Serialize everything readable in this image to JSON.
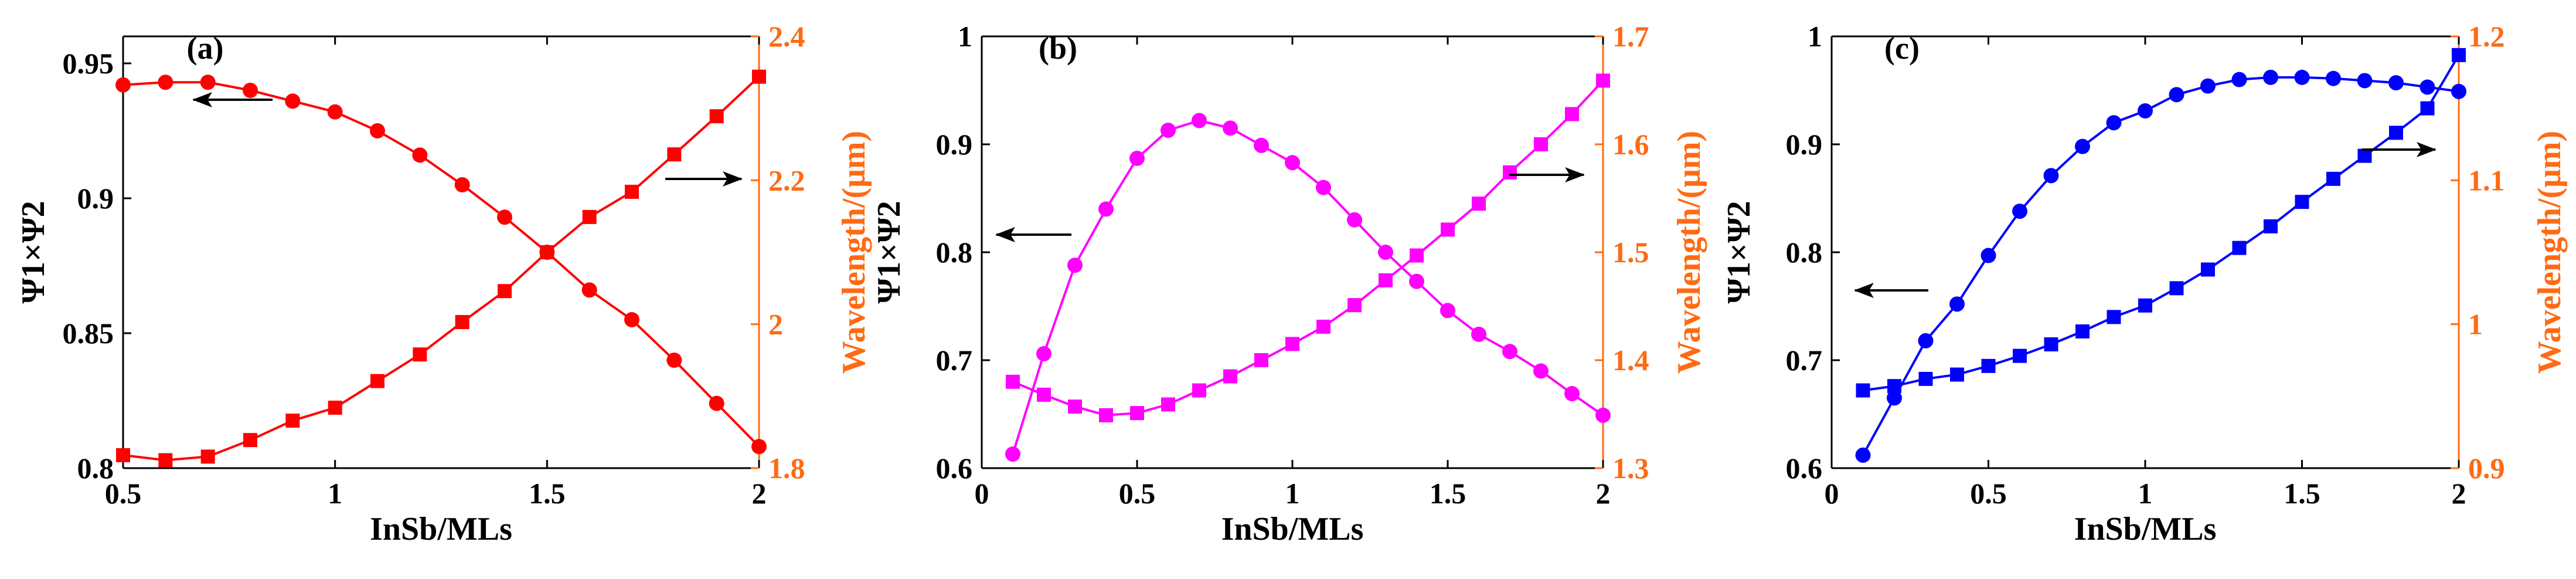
{
  "figure": {
    "colors": {
      "axis_left": "#000000",
      "axis_right": "#FF6A13",
      "arrow": "#000000",
      "background": "#ffffff"
    }
  },
  "chart_data": [
    {
      "type": "line",
      "panel_label": "(a)",
      "xlabel": "InSb/MLs",
      "ylabel_left": "Ψ1×Ψ2",
      "ylabel_right": "Wavelength/(μm)",
      "xlim": [
        0.5,
        2
      ],
      "ylim_left": [
        0.8,
        0.96
      ],
      "ylim_right": [
        1.8,
        2.4
      ],
      "x_ticks": [
        0.5,
        1,
        1.5,
        2
      ],
      "x_tick_labels": [
        "0.5",
        "1",
        "1.5",
        "2"
      ],
      "y_ticks_left": [
        0.8,
        0.85,
        0.9,
        0.95
      ],
      "y_tick_labels_left": [
        "0.8",
        "0.85",
        "0.9",
        "0.95"
      ],
      "y_ticks_right": [
        1.8,
        2,
        2.2,
        2.4
      ],
      "y_tick_labels_right": [
        "1.8",
        "2",
        "2.2",
        "2.4"
      ],
      "series": [
        {
          "name": "Ψ1×Ψ2",
          "axis": "left",
          "marker": "circle",
          "color": "#FF0000",
          "x": [
            0.5,
            0.6,
            0.7,
            0.8,
            0.9,
            1.0,
            1.1,
            1.2,
            1.3,
            1.4,
            1.5,
            1.6,
            1.7,
            1.8,
            1.9,
            2.0
          ],
          "values": [
            0.942,
            0.943,
            0.943,
            0.94,
            0.936,
            0.932,
            0.925,
            0.916,
            0.905,
            0.893,
            0.88,
            0.866,
            0.855,
            0.84,
            0.824,
            0.808
          ]
        },
        {
          "name": "Wavelength",
          "axis": "right",
          "marker": "square",
          "color": "#FF0000",
          "x": [
            0.5,
            0.6,
            0.7,
            0.8,
            0.9,
            1.0,
            1.1,
            1.2,
            1.3,
            1.4,
            1.5,
            1.6,
            1.7,
            1.8,
            1.9,
            2.0
          ],
          "values": [
            1.818,
            1.811,
            1.816,
            1.839,
            1.866,
            1.884,
            1.921,
            1.958,
            2.003,
            2.046,
            2.1,
            2.149,
            2.184,
            2.236,
            2.289,
            2.344
          ]
        }
      ],
      "arrows": [
        {
          "direction": "left",
          "points_to": "left axis"
        },
        {
          "direction": "right",
          "points_to": "right axis"
        }
      ]
    },
    {
      "type": "line",
      "panel_label": "(b)",
      "xlabel": "InSb/MLs",
      "ylabel_left": "Ψ1×Ψ2",
      "ylabel_right": "Wavelength/(μm)",
      "xlim": [
        0,
        2
      ],
      "ylim_left": [
        0.6,
        1.0
      ],
      "ylim_right": [
        1.3,
        1.7
      ],
      "x_ticks": [
        0,
        0.5,
        1,
        1.5,
        2
      ],
      "x_tick_labels": [
        "0",
        "0.5",
        "1",
        "1.5",
        "2"
      ],
      "y_ticks_left": [
        0.6,
        0.7,
        0.8,
        0.9,
        1.0
      ],
      "y_tick_labels_left": [
        "0.6",
        "0.7",
        "0.8",
        "0.9",
        "1"
      ],
      "y_ticks_right": [
        1.3,
        1.4,
        1.5,
        1.6,
        1.7
      ],
      "y_tick_labels_right": [
        "1.3",
        "1.4",
        "1.5",
        "1.6",
        "1.7"
      ],
      "series": [
        {
          "name": "Ψ1×Ψ2",
          "axis": "left",
          "marker": "circle",
          "color": "#FF00FF",
          "x": [
            0.1,
            0.2,
            0.3,
            0.4,
            0.5,
            0.6,
            0.7,
            0.8,
            0.9,
            1.0,
            1.1,
            1.2,
            1.3,
            1.4,
            1.5,
            1.6,
            1.7,
            1.8,
            1.9,
            2.0
          ],
          "values": [
            0.613,
            0.706,
            0.788,
            0.84,
            0.887,
            0.913,
            0.922,
            0.915,
            0.899,
            0.883,
            0.86,
            0.83,
            0.8,
            0.773,
            0.746,
            0.724,
            0.708,
            0.69,
            0.669,
            0.649
          ]
        },
        {
          "name": "Wavelength",
          "axis": "right",
          "marker": "square",
          "color": "#FF00FF",
          "x": [
            0.1,
            0.2,
            0.3,
            0.4,
            0.5,
            0.6,
            0.7,
            0.8,
            0.9,
            1.0,
            1.1,
            1.2,
            1.3,
            1.4,
            1.5,
            1.6,
            1.7,
            1.8,
            1.9,
            2.0
          ],
          "values": [
            1.38,
            1.368,
            1.357,
            1.349,
            1.351,
            1.359,
            1.372,
            1.385,
            1.4,
            1.415,
            1.431,
            1.451,
            1.474,
            1.497,
            1.521,
            1.545,
            1.574,
            1.6,
            1.628,
            1.659
          ]
        }
      ],
      "arrows": [
        {
          "direction": "left",
          "points_to": "left axis"
        },
        {
          "direction": "right",
          "points_to": "right axis"
        }
      ]
    },
    {
      "type": "line",
      "panel_label": "(c)",
      "xlabel": "InSb/MLs",
      "ylabel_left": "Ψ1×Ψ2",
      "ylabel_right": "Wavelength/(μm)",
      "xlim": [
        0,
        2
      ],
      "ylim_left": [
        0.6,
        1.0
      ],
      "ylim_right": [
        0.9,
        1.2
      ],
      "x_ticks": [
        0,
        0.5,
        1,
        1.5,
        2
      ],
      "x_tick_labels": [
        "0",
        "0.5",
        "1",
        "1.5",
        "2"
      ],
      "y_ticks_left": [
        0.6,
        0.7,
        0.8,
        0.9,
        1.0
      ],
      "y_tick_labels_left": [
        "0.6",
        "0.7",
        "0.8",
        "0.9",
        "1"
      ],
      "y_ticks_right": [
        0.9,
        1.0,
        1.1,
        1.2
      ],
      "y_tick_labels_right": [
        "0.9",
        "1",
        "1.1",
        "1.2"
      ],
      "series": [
        {
          "name": "Ψ1×Ψ2",
          "axis": "left",
          "marker": "circle",
          "color": "#0000FF",
          "x": [
            0.1,
            0.2,
            0.3,
            0.4,
            0.5,
            0.6,
            0.7,
            0.8,
            0.9,
            1.0,
            1.1,
            1.2,
            1.3,
            1.4,
            1.5,
            1.6,
            1.7,
            1.8,
            1.9,
            2.0
          ],
          "values": [
            0.612,
            0.665,
            0.718,
            0.752,
            0.797,
            0.838,
            0.871,
            0.898,
            0.92,
            0.931,
            0.946,
            0.954,
            0.96,
            0.962,
            0.962,
            0.961,
            0.959,
            0.957,
            0.953,
            0.949
          ]
        },
        {
          "name": "Wavelength",
          "axis": "right",
          "marker": "square",
          "color": "#0000FF",
          "x": [
            0.1,
            0.2,
            0.3,
            0.4,
            0.5,
            0.6,
            0.7,
            0.8,
            0.9,
            1.0,
            1.1,
            1.2,
            1.3,
            1.4,
            1.5,
            1.6,
            1.7,
            1.8,
            1.9,
            2.0
          ],
          "values": [
            0.954,
            0.957,
            0.962,
            0.965,
            0.971,
            0.978,
            0.986,
            0.995,
            1.005,
            1.013,
            1.025,
            1.038,
            1.053,
            1.068,
            1.085,
            1.101,
            1.117,
            1.133,
            1.15,
            1.187
          ]
        }
      ],
      "arrows": [
        {
          "direction": "left",
          "points_to": "left axis"
        },
        {
          "direction": "right",
          "points_to": "right axis"
        }
      ]
    }
  ]
}
